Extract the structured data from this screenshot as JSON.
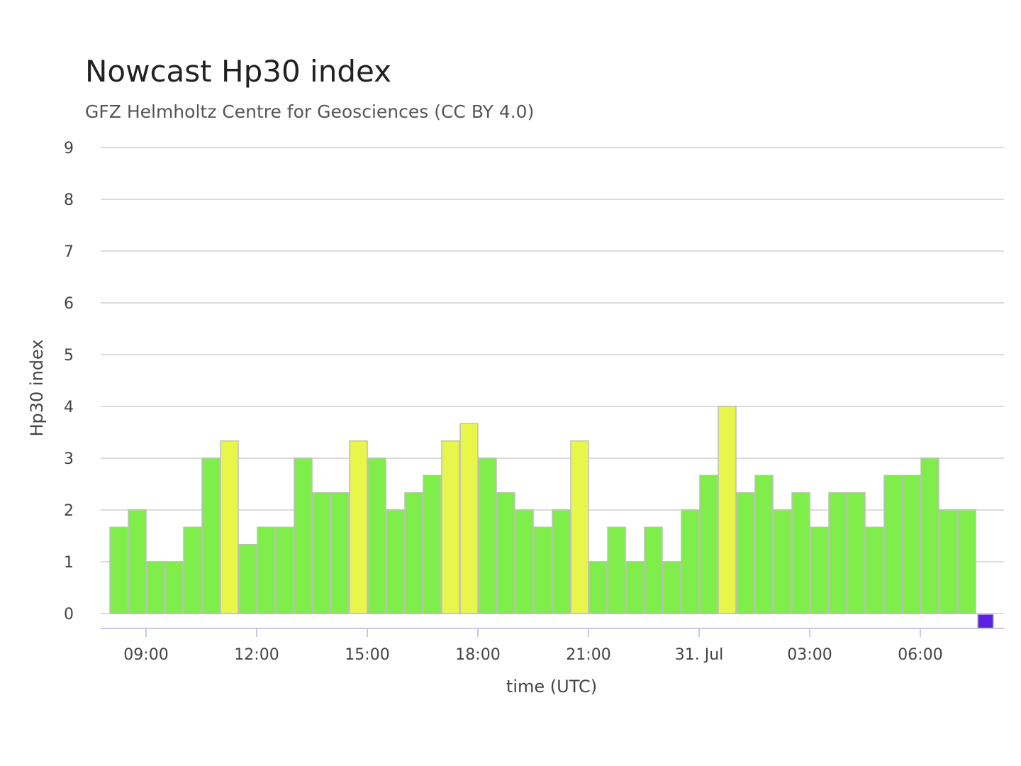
{
  "chart_data": {
    "type": "bar",
    "title": "Nowcast Hp30 index",
    "subtitle": "GFZ Helmholtz Centre for Geosciences (CC BY 4.0)",
    "xlabel": "time (UTC)",
    "ylabel": "Hp30 index",
    "ylim": [
      0,
      9
    ],
    "yticks": [
      0,
      1,
      2,
      3,
      4,
      5,
      6,
      7,
      8,
      9
    ],
    "xticks": [
      {
        "label": "09:00",
        "time": "2024-07-30T09:00"
      },
      {
        "label": "12:00",
        "time": "2024-07-30T12:00"
      },
      {
        "label": "15:00",
        "time": "2024-07-30T15:00"
      },
      {
        "label": "18:00",
        "time": "2024-07-30T18:00"
      },
      {
        "label": "21:00",
        "time": "2024-07-30T21:00"
      },
      {
        "label": "31. Jul",
        "time": "2024-07-31T00:00"
      },
      {
        "label": "03:00",
        "time": "2024-07-31T03:00"
      },
      {
        "label": "06:00",
        "time": "2024-07-31T06:00"
      }
    ],
    "grid": true,
    "legend": "none",
    "colors": {
      "quiet": "#80ee4a",
      "active": "#e8f64c",
      "nowcast": "#5a22e0",
      "bar_border": "#bdbdbd",
      "grid": "#dcdcdc",
      "axis": "#c8c8e8"
    },
    "bars": [
      {
        "time": "2024-07-30T08:00",
        "value": 1.667,
        "level": "quiet"
      },
      {
        "time": "2024-07-30T08:30",
        "value": 2.0,
        "level": "quiet"
      },
      {
        "time": "2024-07-30T09:00",
        "value": 1.0,
        "level": "quiet"
      },
      {
        "time": "2024-07-30T09:30",
        "value": 1.0,
        "level": "quiet"
      },
      {
        "time": "2024-07-30T10:00",
        "value": 1.667,
        "level": "quiet"
      },
      {
        "time": "2024-07-30T10:30",
        "value": 3.0,
        "level": "quiet"
      },
      {
        "time": "2024-07-30T11:00",
        "value": 3.333,
        "level": "active"
      },
      {
        "time": "2024-07-30T11:30",
        "value": 1.333,
        "level": "quiet"
      },
      {
        "time": "2024-07-30T12:00",
        "value": 1.667,
        "level": "quiet"
      },
      {
        "time": "2024-07-30T12:30",
        "value": 1.667,
        "level": "quiet"
      },
      {
        "time": "2024-07-30T13:00",
        "value": 3.0,
        "level": "quiet"
      },
      {
        "time": "2024-07-30T13:30",
        "value": 2.333,
        "level": "quiet"
      },
      {
        "time": "2024-07-30T14:00",
        "value": 2.333,
        "level": "quiet"
      },
      {
        "time": "2024-07-30T14:30",
        "value": 3.333,
        "level": "active"
      },
      {
        "time": "2024-07-30T15:00",
        "value": 3.0,
        "level": "quiet"
      },
      {
        "time": "2024-07-30T15:30",
        "value": 2.0,
        "level": "quiet"
      },
      {
        "time": "2024-07-30T16:00",
        "value": 2.333,
        "level": "quiet"
      },
      {
        "time": "2024-07-30T16:30",
        "value": 2.667,
        "level": "quiet"
      },
      {
        "time": "2024-07-30T17:00",
        "value": 3.333,
        "level": "active"
      },
      {
        "time": "2024-07-30T17:30",
        "value": 3.667,
        "level": "active"
      },
      {
        "time": "2024-07-30T18:00",
        "value": 3.0,
        "level": "quiet"
      },
      {
        "time": "2024-07-30T18:30",
        "value": 2.333,
        "level": "quiet"
      },
      {
        "time": "2024-07-30T19:00",
        "value": 2.0,
        "level": "quiet"
      },
      {
        "time": "2024-07-30T19:30",
        "value": 1.667,
        "level": "quiet"
      },
      {
        "time": "2024-07-30T20:00",
        "value": 2.0,
        "level": "quiet"
      },
      {
        "time": "2024-07-30T20:30",
        "value": 3.333,
        "level": "active"
      },
      {
        "time": "2024-07-30T21:00",
        "value": 1.0,
        "level": "quiet"
      },
      {
        "time": "2024-07-30T21:30",
        "value": 1.667,
        "level": "quiet"
      },
      {
        "time": "2024-07-30T22:00",
        "value": 1.0,
        "level": "quiet"
      },
      {
        "time": "2024-07-30T22:30",
        "value": 1.667,
        "level": "quiet"
      },
      {
        "time": "2024-07-30T23:00",
        "value": 1.0,
        "level": "quiet"
      },
      {
        "time": "2024-07-30T23:30",
        "value": 2.0,
        "level": "quiet"
      },
      {
        "time": "2024-07-31T00:00",
        "value": 2.667,
        "level": "quiet"
      },
      {
        "time": "2024-07-31T00:30",
        "value": 4.0,
        "level": "active"
      },
      {
        "time": "2024-07-31T01:00",
        "value": 2.333,
        "level": "quiet"
      },
      {
        "time": "2024-07-31T01:30",
        "value": 2.667,
        "level": "quiet"
      },
      {
        "time": "2024-07-31T02:00",
        "value": 2.0,
        "level": "quiet"
      },
      {
        "time": "2024-07-31T02:30",
        "value": 2.333,
        "level": "quiet"
      },
      {
        "time": "2024-07-31T03:00",
        "value": 1.667,
        "level": "quiet"
      },
      {
        "time": "2024-07-31T03:30",
        "value": 2.333,
        "level": "quiet"
      },
      {
        "time": "2024-07-31T04:00",
        "value": 2.333,
        "level": "quiet"
      },
      {
        "time": "2024-07-31T04:30",
        "value": 1.667,
        "level": "quiet"
      },
      {
        "time": "2024-07-31T05:00",
        "value": 2.667,
        "level": "quiet"
      },
      {
        "time": "2024-07-31T05:30",
        "value": 2.667,
        "level": "quiet"
      },
      {
        "time": "2024-07-31T06:00",
        "value": 3.0,
        "level": "quiet"
      },
      {
        "time": "2024-07-31T06:30",
        "value": 2.0,
        "level": "quiet"
      },
      {
        "time": "2024-07-31T07:00",
        "value": 2.0,
        "level": "quiet"
      },
      {
        "time": "2024-07-31T07:30",
        "value": 0.0,
        "level": "nowcast"
      }
    ]
  }
}
